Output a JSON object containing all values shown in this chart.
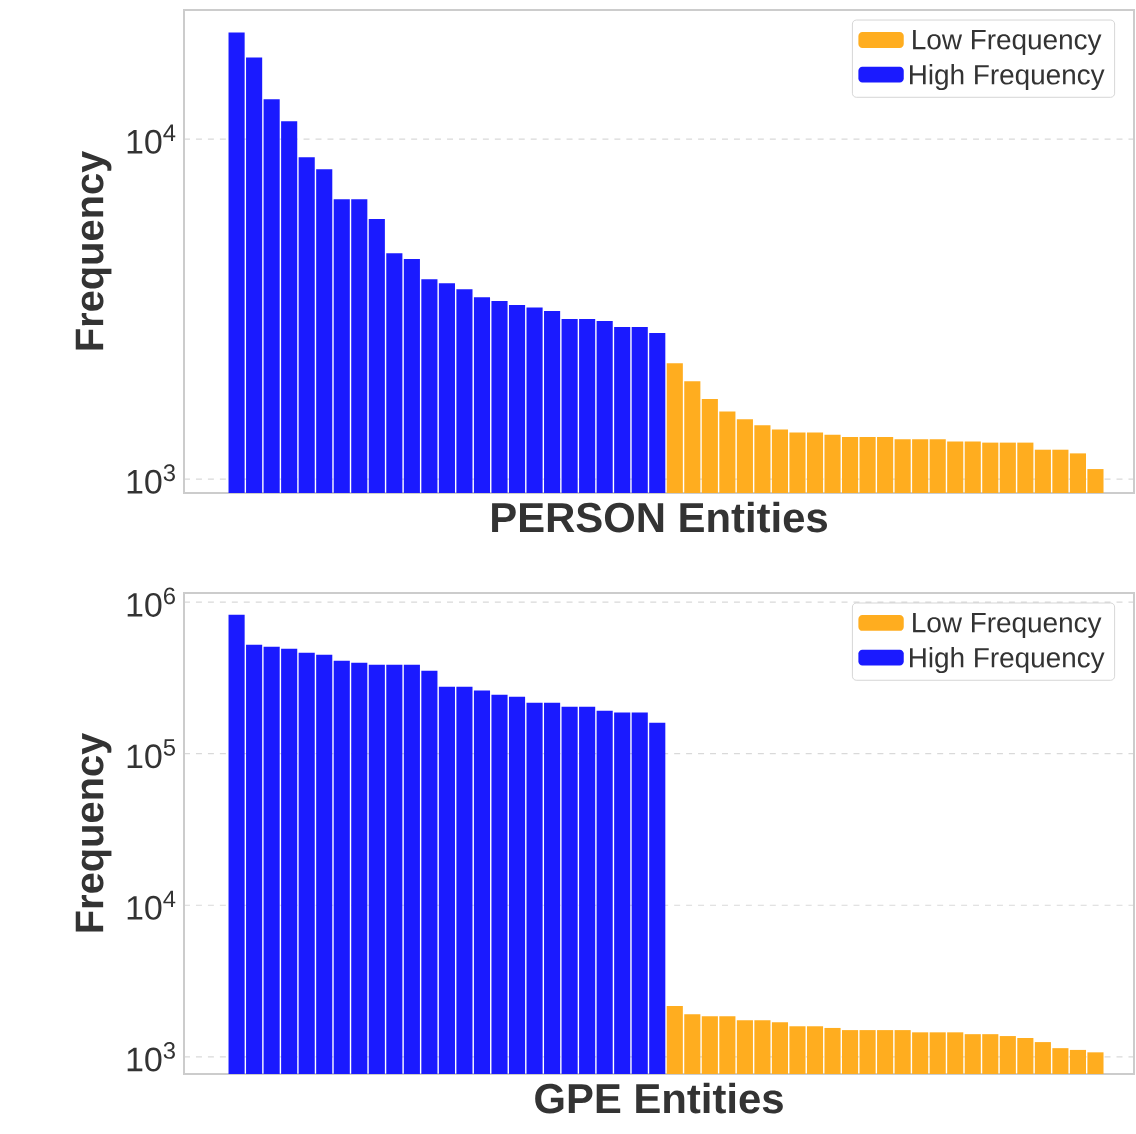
{
  "chart_data": [
    {
      "type": "bar",
      "stacked": true,
      "xlabel": "PERSON Entities",
      "ylabel": "Frequency",
      "log": "y",
      "grid": "y",
      "legend": "top right",
      "tick_labels": "y",
      "categories": [
        null,
        null,
        null,
        null,
        null,
        null,
        null,
        null,
        null,
        null,
        null,
        null,
        null,
        null,
        null,
        null,
        null,
        null,
        null,
        null,
        null,
        null,
        null,
        null,
        null,
        null,
        null,
        null,
        null,
        null,
        null,
        null,
        null,
        null,
        null,
        null,
        null,
        null,
        null,
        null,
        null,
        null,
        null,
        null,
        null,
        null,
        null,
        null,
        null,
        null
      ],
      "ylim": [
        910,
        24000
      ],
      "yticks": [
        {
          "value": 1000,
          "label": "10$^{3}$"
        },
        {
          "value": 10000,
          "label": "10$^{4}$"
        }
      ],
      "series": [
        {
          "name": "High Frequency",
          "color": "#1a1aff",
          "values": [
            20600,
            17400,
            13100,
            11300,
            8850,
            8160,
            6660,
            6660,
            5820,
            4620,
            4440,
            3870,
            3770,
            3620,
            3430,
            3340,
            3250,
            3200,
            3120,
            2960,
            2960,
            2920,
            2800,
            2800,
            2690,
            null,
            null,
            null,
            null,
            null,
            null,
            null,
            null,
            null,
            null,
            null,
            null,
            null,
            null,
            null,
            null,
            null,
            null,
            null,
            null,
            null,
            null,
            null,
            null,
            null
          ]
        },
        {
          "name": "Low Frequency",
          "color": "#ffad1f",
          "values": [
            null,
            null,
            null,
            null,
            null,
            null,
            null,
            null,
            null,
            null,
            null,
            null,
            null,
            null,
            null,
            null,
            null,
            null,
            null,
            null,
            null,
            null,
            null,
            null,
            null,
            2190,
            1940,
            1720,
            1580,
            1500,
            1440,
            1400,
            1370,
            1370,
            1350,
            1330,
            1330,
            1330,
            1310,
            1310,
            1310,
            1290,
            1290,
            1280,
            1280,
            1280,
            1220,
            1220,
            1190,
            1070
          ]
        }
      ]
    },
    {
      "type": "bar",
      "stacked": true,
      "xlabel": "GPE Entities",
      "ylabel": "Frequency",
      "log": "y",
      "grid": "y",
      "legend": "top right",
      "tick_labels": "y",
      "categories": [
        null,
        null,
        null,
        null,
        null,
        null,
        null,
        null,
        null,
        null,
        null,
        null,
        null,
        null,
        null,
        null,
        null,
        null,
        null,
        null,
        null,
        null,
        null,
        null,
        null,
        null,
        null,
        null,
        null,
        null,
        null,
        null,
        null,
        null,
        null,
        null,
        null,
        null,
        null,
        null,
        null,
        null,
        null,
        null,
        null,
        null,
        null,
        null,
        null,
        null
      ],
      "ylim": [
        770,
        1150000
      ],
      "yticks": [
        {
          "value": 1000,
          "label": "10$^{3}$"
        },
        {
          "value": 10000,
          "label": "10$^{4}$"
        },
        {
          "value": 100000,
          "label": "10$^{5}$"
        },
        {
          "value": 1000000,
          "label": "10$^{6}$"
        }
      ],
      "series": [
        {
          "name": "High Frequency",
          "color": "#1a1aff",
          "values": [
            826000,
            524000,
            508000,
            493000,
            464000,
            450000,
            411000,
            398000,
            386000,
            386000,
            386000,
            353000,
            277000,
            277000,
            261000,
            245000,
            238000,
            217000,
            217000,
            204000,
            204000,
            192000,
            187000,
            187000,
            160000,
            null,
            null,
            null,
            null,
            null,
            null,
            null,
            null,
            null,
            null,
            null,
            null,
            null,
            null,
            null,
            null,
            null,
            null,
            null,
            null,
            null,
            null,
            null,
            null,
            null
          ]
        },
        {
          "name": "Low Frequency",
          "color": "#ffad1f",
          "values": [
            null,
            null,
            null,
            null,
            null,
            null,
            null,
            null,
            null,
            null,
            null,
            null,
            null,
            null,
            null,
            null,
            null,
            null,
            null,
            null,
            null,
            null,
            null,
            null,
            null,
            2160,
            1910,
            1850,
            1850,
            1740,
            1740,
            1690,
            1590,
            1590,
            1550,
            1500,
            1500,
            1500,
            1500,
            1450,
            1450,
            1450,
            1410,
            1410,
            1370,
            1330,
            1250,
            1140,
            1110,
            1070
          ]
        }
      ]
    }
  ]
}
